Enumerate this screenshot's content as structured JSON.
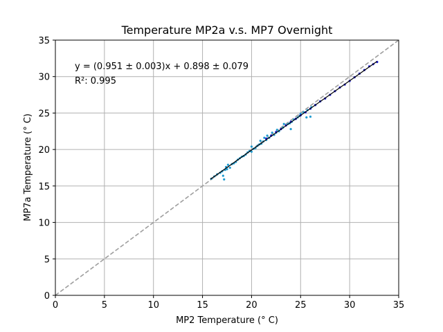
{
  "chart_data": {
    "type": "scatter",
    "title": "Temperature MP2a v.s. MP7 Overnight",
    "xlabel": "MP2 Temperature (° C)",
    "ylabel": "MP7a Temperature (° C)",
    "xlim": [
      0,
      35
    ],
    "ylim": [
      0,
      35
    ],
    "xticks": [
      0,
      5,
      10,
      15,
      20,
      25,
      30,
      35
    ],
    "yticks": [
      0,
      5,
      10,
      15,
      20,
      25,
      30,
      35
    ],
    "grid": true,
    "annotations": [
      "y = (0.951 ± 0.003)x + 0.898 ± 0.079",
      "R²: 0.995"
    ],
    "fit": {
      "slope": 0.951,
      "intercept": 0.898,
      "x_range": [
        15.8,
        32.8
      ]
    },
    "reference_line": {
      "slope": 1,
      "intercept": 0
    },
    "colors": {
      "scatter_light": "#1f9bd0",
      "scatter_dark": "#1a1ad8",
      "fit_line": "#000000",
      "reference_line": "#9e9e9e"
    },
    "series": [
      {
        "points": [
          [
            15.9,
            16.0
          ],
          [
            16.2,
            16.3
          ],
          [
            16.5,
            16.6
          ],
          [
            16.8,
            16.8
          ],
          [
            17.0,
            17.0
          ],
          [
            17.1,
            16.4
          ],
          [
            17.2,
            15.9
          ],
          [
            17.3,
            17.2
          ],
          [
            17.4,
            17.6
          ],
          [
            17.5,
            17.3
          ],
          [
            17.6,
            17.9
          ],
          [
            17.8,
            17.5
          ],
          [
            18.0,
            18.0
          ],
          [
            18.2,
            18.1
          ],
          [
            18.4,
            18.3
          ],
          [
            18.6,
            18.6
          ],
          [
            18.8,
            18.8
          ],
          [
            19.0,
            19.0
          ],
          [
            19.2,
            19.1
          ],
          [
            19.4,
            19.3
          ],
          [
            19.6,
            19.6
          ],
          [
            19.8,
            19.8
          ],
          [
            20.0,
            19.7
          ],
          [
            20.0,
            20.4
          ],
          [
            20.2,
            20.1
          ],
          [
            20.4,
            20.2
          ],
          [
            20.6,
            20.5
          ],
          [
            20.8,
            20.7
          ],
          [
            20.9,
            21.2
          ],
          [
            21.0,
            20.8
          ],
          [
            21.2,
            21.1
          ],
          [
            21.3,
            21.6
          ],
          [
            21.5,
            21.3
          ],
          [
            21.6,
            21.9
          ],
          [
            21.8,
            21.6
          ],
          [
            22.0,
            21.9
          ],
          [
            22.1,
            22.3
          ],
          [
            22.3,
            22.0
          ],
          [
            22.5,
            22.3
          ],
          [
            22.6,
            22.7
          ],
          [
            22.8,
            22.5
          ],
          [
            23.0,
            22.8
          ],
          [
            23.2,
            23.0
          ],
          [
            23.3,
            23.5
          ],
          [
            23.5,
            23.3
          ],
          [
            23.7,
            23.5
          ],
          [
            23.9,
            23.6
          ],
          [
            24.0,
            22.8
          ],
          [
            24.1,
            23.8
          ],
          [
            24.3,
            24.1
          ],
          [
            24.5,
            24.2
          ],
          [
            24.7,
            24.4
          ],
          [
            24.9,
            24.6
          ],
          [
            25.0,
            24.9
          ],
          [
            25.3,
            25.1
          ],
          [
            25.6,
            24.4
          ],
          [
            25.7,
            25.4
          ],
          [
            26.0,
            24.5
          ],
          [
            26.1,
            25.8
          ],
          [
            26.5,
            26.1
          ],
          [
            27.0,
            26.6
          ]
        ]
      },
      {
        "points": [
          [
            21.5,
            21.5
          ],
          [
            22.0,
            21.9
          ],
          [
            22.5,
            22.4
          ],
          [
            23.0,
            22.8
          ],
          [
            23.5,
            23.3
          ],
          [
            24.0,
            23.8
          ],
          [
            24.5,
            24.2
          ],
          [
            25.0,
            24.7
          ],
          [
            25.5,
            25.1
          ],
          [
            26.0,
            25.6
          ],
          [
            26.5,
            26.1
          ],
          [
            27.0,
            26.6
          ],
          [
            27.5,
            27.0
          ],
          [
            28.0,
            27.5
          ],
          [
            28.5,
            28.0
          ],
          [
            29.0,
            28.5
          ],
          [
            29.5,
            28.9
          ],
          [
            30.0,
            29.4
          ],
          [
            30.5,
            29.9
          ],
          [
            31.0,
            30.4
          ],
          [
            31.5,
            30.9
          ],
          [
            32.0,
            31.4
          ],
          [
            32.4,
            31.7
          ],
          [
            32.8,
            32.0
          ]
        ]
      }
    ]
  }
}
